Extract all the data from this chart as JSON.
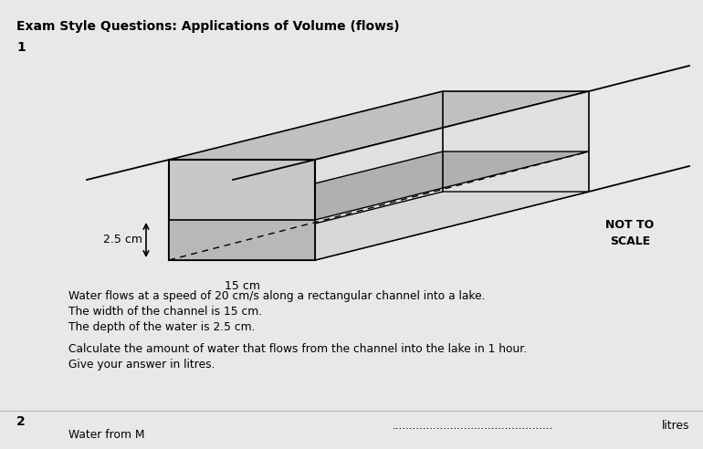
{
  "title": "Exam Style Questions: Applications of Volume (flows)",
  "question_number": "1",
  "question_number2": "2",
  "background_color": "#e8e8e8",
  "not_to_scale": "NOT TO\nSCALE",
  "label_25cm": "2.5 cm",
  "label_15cm": "15 cm",
  "text_line1": "Water flows at a speed of 20 cm/s along a rectangular channel into a lake.",
  "text_line2": "The width of the channel is 15 cm.",
  "text_line3": "The depth of the water is 2.5 cm.",
  "text_line4": "Calculate the amount of water that flows from the channel into the lake in 1 hour.",
  "text_line5": "Give your answer in litres.",
  "answer_dots": "...............................................",
  "answer_unit": "litres",
  "text_line6": "Water from M",
  "top_face_color": "#c0c0c0",
  "water_top_color": "#b0b0b0",
  "front_face_color": "#c8c8c8",
  "water_front_color": "#b8b8b8",
  "right_face_color": "#e0e0e0",
  "line_color": "#000000",
  "page_bg": "#e8e8e8"
}
